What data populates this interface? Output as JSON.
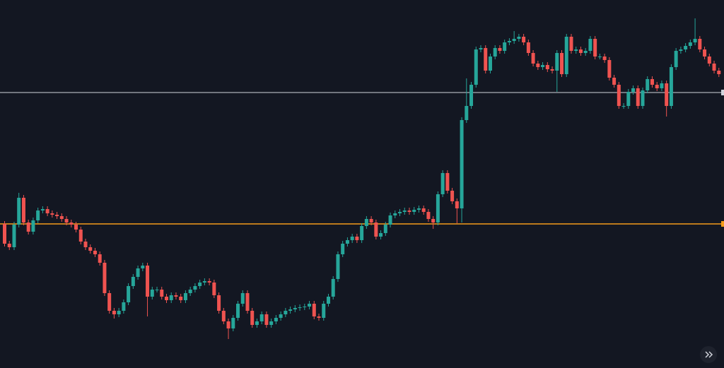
{
  "chart_data": {
    "type": "candlestick",
    "ylim": [
      0,
      521
    ],
    "up_color": "#26a69a",
    "down_color": "#ef5350",
    "background": "#131722",
    "levels": [
      {
        "value": 390,
        "color": "#d1d4dc"
      },
      {
        "value": 204,
        "color": "#f59c1a"
      }
    ],
    "open": [
      204,
      176,
      171,
      203,
      241,
      206,
      193,
      209,
      223,
      225,
      219,
      217,
      215,
      211,
      206,
      203,
      196,
      179,
      171,
      166,
      161,
      149,
      106,
      81,
      76,
      81,
      93,
      116,
      129,
      141,
      145,
      101,
      111,
      111,
      101,
      96,
      103,
      101,
      96,
      106,
      111,
      116,
      121,
      123,
      121,
      103,
      81,
      66,
      56,
      71,
      91,
      106,
      81,
      61,
      66,
      76,
      61,
      66,
      71,
      76,
      81,
      83,
      85,
      86,
      87,
      91,
      73,
      71,
      91,
      101,
      126,
      161,
      176,
      181,
      186,
      181,
      201,
      211,
      206,
      186,
      191,
      203,
      216,
      219,
      221,
      223,
      221,
      224,
      226,
      221,
      211,
      206,
      246,
      276,
      251,
      236,
      226,
      351,
      371,
      401,
      451,
      453,
      421,
      441,
      453,
      449,
      461,
      463,
      466,
      469,
      461,
      446,
      431,
      426,
      429,
      423,
      421,
      446,
      416,
      469,
      449,
      451,
      446,
      449,
      466,
      441,
      441,
      436,
      411,
      401,
      371,
      371,
      391,
      396,
      371,
      393,
      409,
      401,
      396,
      403,
      371,
      426,
      449,
      451,
      456,
      461,
      466,
      451,
      441,
      431,
      421
    ],
    "high": [
      208,
      180,
      207,
      248,
      245,
      210,
      213,
      227,
      229,
      229,
      223,
      221,
      219,
      215,
      210,
      207,
      200,
      183,
      175,
      170,
      165,
      153,
      110,
      85,
      85,
      97,
      120,
      133,
      145,
      149,
      149,
      115,
      115,
      115,
      105,
      107,
      107,
      105,
      110,
      115,
      120,
      125,
      127,
      127,
      125,
      107,
      85,
      70,
      75,
      95,
      110,
      110,
      85,
      70,
      80,
      80,
      70,
      75,
      80,
      85,
      87,
      89,
      90,
      91,
      95,
      95,
      77,
      95,
      105,
      130,
      165,
      180,
      185,
      190,
      190,
      205,
      215,
      215,
      210,
      195,
      207,
      220,
      223,
      225,
      227,
      227,
      228,
      230,
      230,
      225,
      215,
      250,
      280,
      280,
      255,
      240,
      355,
      410,
      405,
      455,
      457,
      457,
      445,
      457,
      457,
      465,
      467,
      477,
      473,
      473,
      465,
      450,
      435,
      433,
      433,
      427,
      450,
      450,
      473,
      473,
      455,
      455,
      453,
      470,
      470,
      445,
      445,
      440,
      415,
      405,
      375,
      395,
      400,
      400,
      397,
      413,
      413,
      405,
      407,
      407,
      430,
      453,
      455,
      460,
      465,
      495,
      470,
      455,
      445,
      435,
      425
    ],
    "low": [
      172,
      167,
      167,
      199,
      202,
      189,
      189,
      205,
      219,
      215,
      213,
      211,
      207,
      202,
      199,
      192,
      175,
      167,
      162,
      157,
      145,
      102,
      77,
      70,
      72,
      77,
      89,
      112,
      125,
      137,
      73,
      97,
      107,
      97,
      92,
      92,
      97,
      92,
      92,
      102,
      107,
      112,
      117,
      117,
      99,
      77,
      62,
      41,
      52,
      67,
      87,
      77,
      57,
      57,
      62,
      57,
      57,
      62,
      67,
      72,
      77,
      79,
      81,
      82,
      83,
      69,
      67,
      67,
      87,
      97,
      122,
      157,
      172,
      177,
      177,
      177,
      197,
      202,
      182,
      182,
      187,
      199,
      212,
      215,
      217,
      217,
      217,
      220,
      217,
      207,
      197,
      202,
      242,
      247,
      232,
      205,
      206,
      347,
      367,
      397,
      447,
      417,
      417,
      437,
      445,
      445,
      457,
      459,
      462,
      457,
      442,
      427,
      422,
      422,
      419,
      417,
      391,
      412,
      412,
      445,
      445,
      442,
      442,
      445,
      437,
      437,
      432,
      407,
      397,
      367,
      367,
      367,
      387,
      367,
      367,
      389,
      397,
      392,
      392,
      356,
      367,
      422,
      445,
      447,
      452,
      457,
      447,
      437,
      427,
      417,
      412
    ],
    "close": [
      176,
      171,
      203,
      241,
      206,
      193,
      209,
      223,
      225,
      219,
      217,
      215,
      211,
      206,
      203,
      196,
      179,
      171,
      166,
      161,
      149,
      106,
      81,
      76,
      81,
      93,
      116,
      129,
      141,
      145,
      101,
      111,
      111,
      101,
      96,
      103,
      101,
      96,
      106,
      111,
      116,
      121,
      123,
      121,
      103,
      81,
      66,
      56,
      71,
      91,
      106,
      81,
      61,
      66,
      76,
      61,
      66,
      71,
      76,
      81,
      83,
      85,
      86,
      87,
      91,
      73,
      71,
      91,
      101,
      126,
      161,
      176,
      181,
      186,
      181,
      201,
      211,
      206,
      186,
      191,
      203,
      216,
      219,
      221,
      223,
      221,
      224,
      226,
      221,
      211,
      206,
      246,
      276,
      251,
      236,
      226,
      351,
      371,
      401,
      451,
      453,
      421,
      441,
      453,
      449,
      461,
      463,
      466,
      469,
      461,
      446,
      431,
      426,
      429,
      423,
      421,
      446,
      416,
      469,
      449,
      451,
      446,
      449,
      466,
      441,
      441,
      436,
      411,
      401,
      371,
      371,
      391,
      396,
      371,
      393,
      409,
      401,
      396,
      403,
      371,
      426,
      449,
      451,
      456,
      461,
      466,
      451,
      441,
      431,
      421,
      416
    ]
  }
}
